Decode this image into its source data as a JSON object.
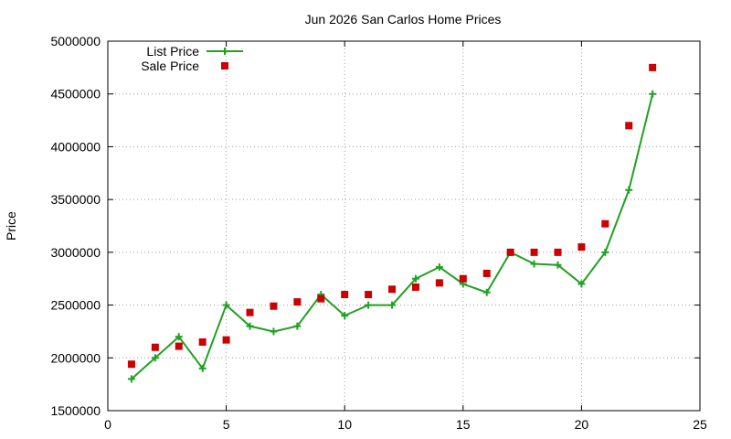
{
  "chart_data": {
    "type": "line",
    "title": "Jun 2026 San Carlos Home Prices",
    "xlabel": "",
    "ylabel": "Price",
    "xlim": [
      0,
      25
    ],
    "ylim": [
      1500000,
      5000000
    ],
    "x_ticks": [
      "0",
      "5",
      "10",
      "15",
      "20",
      "25"
    ],
    "y_ticks": [
      "1500000",
      "2000000",
      "2500000",
      "3000000",
      "3500000",
      "4000000",
      "4500000",
      "5000000"
    ],
    "grid": true,
    "legend_position": "top-left",
    "series": [
      {
        "name": "List Price",
        "style": "line-with-plus-markers",
        "color": "#22a022",
        "x": [
          1,
          2,
          3,
          4,
          5,
          6,
          7,
          8,
          9,
          10,
          11,
          12,
          13,
          14,
          15,
          16,
          17,
          18,
          19,
          20,
          21,
          22,
          23
        ],
        "y": [
          1800000,
          2000000,
          2200000,
          1900000,
          2500000,
          2300000,
          2250000,
          2300000,
          2600000,
          2400000,
          2500000,
          2500000,
          2750000,
          2860000,
          2700000,
          2620000,
          3000000,
          2890000,
          2880000,
          2700000,
          3000000,
          3590000,
          4500000
        ]
      },
      {
        "name": "Sale Price",
        "style": "square-markers",
        "color": "#cc0000",
        "x": [
          1,
          2,
          3,
          4,
          5,
          6,
          7,
          8,
          9,
          10,
          11,
          12,
          13,
          14,
          15,
          16,
          17,
          18,
          19,
          20,
          21,
          22,
          23
        ],
        "y": [
          1940000,
          2100000,
          2110000,
          2150000,
          2170000,
          2430000,
          2490000,
          2530000,
          2560000,
          2600000,
          2600000,
          2650000,
          2670000,
          2710000,
          2750000,
          2800000,
          3000000,
          3000000,
          3000000,
          3050000,
          3270000,
          4200000,
          4750000
        ]
      }
    ]
  }
}
